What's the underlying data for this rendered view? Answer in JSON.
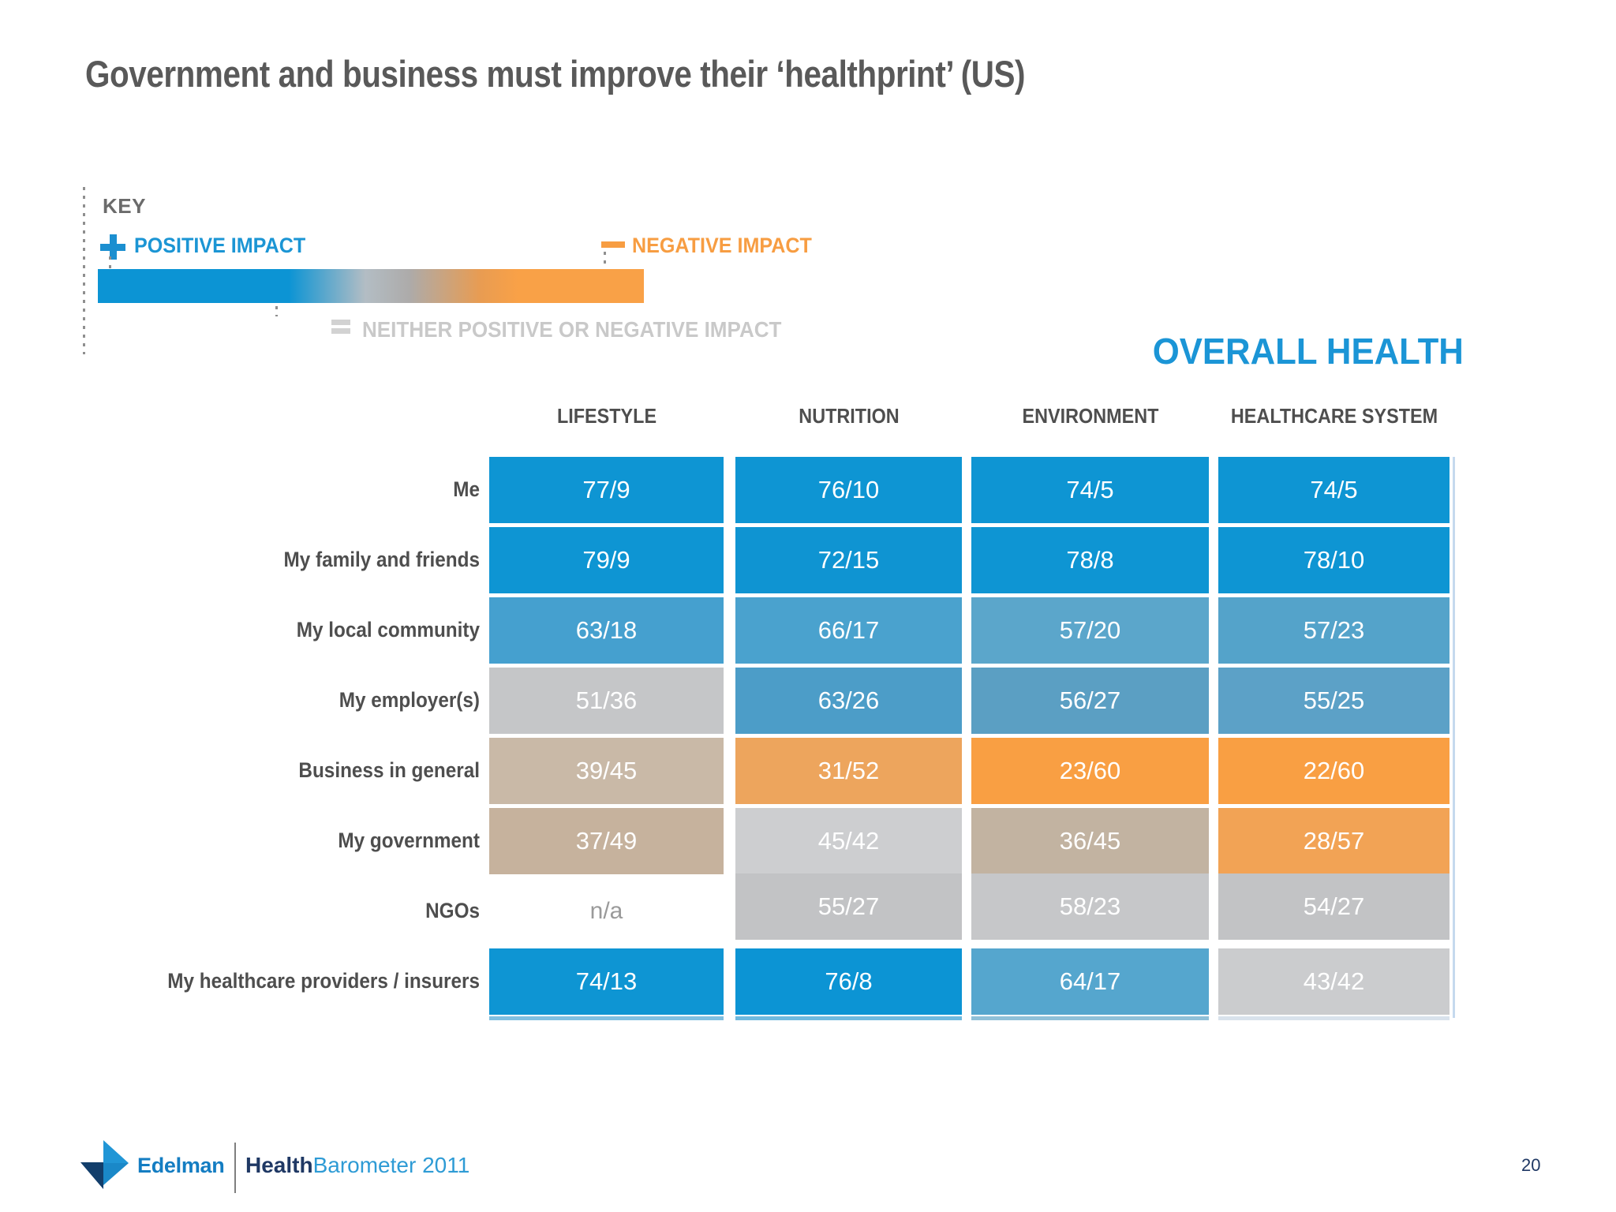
{
  "slide": {
    "title": "Government and business must improve their ‘healthprint’ (US)",
    "page_number": "20"
  },
  "key": {
    "label": "KEY",
    "positive_label": "POSITIVE IMPACT",
    "negative_label": "NEGATIVE IMPACT",
    "neither_label": "NEITHER POSITIVE OR NEGATIVE IMPACT",
    "colors": {
      "positive": "#0C94D4",
      "negative": "#F9A147",
      "neither": "#ADABAA"
    }
  },
  "overall_health_label": "OVERALL HEALTH",
  "chart_data": {
    "type": "heatmap",
    "title": "Government and business must improve their ‘healthprint’ (US)",
    "measure": "OVERALL HEALTH",
    "value_format": "positive/negative (% saying positive impact / % saying negative impact)",
    "legend": {
      "positive": "POSITIVE IMPACT",
      "negative": "NEGATIVE IMPACT",
      "neither": "NEITHER POSITIVE OR NEGATIVE IMPACT",
      "scale": "blue = positive, gray = neutral, orange = negative"
    },
    "columns": [
      "LIFESTYLE",
      "NUTRITION",
      "ENVIRONMENT",
      "HEALTHCARE SYSTEM"
    ],
    "rows": [
      "Me",
      "My family and friends",
      "My local community",
      "My employer(s)",
      "Business in general",
      "My government",
      "NGOs",
      "My healthcare providers / insurers"
    ],
    "cells": [
      [
        {
          "label": "77/9",
          "pos": 77,
          "neg": 9,
          "color": "#0E95D3"
        },
        {
          "label": "76/10",
          "pos": 76,
          "neg": 10,
          "color": "#0E95D3"
        },
        {
          "label": "74/5",
          "pos": 74,
          "neg": 5,
          "color": "#0E95D3"
        },
        {
          "label": "74/5",
          "pos": 74,
          "neg": 5,
          "color": "#0E95D3"
        }
      ],
      [
        {
          "label": "79/9",
          "pos": 79,
          "neg": 9,
          "color": "#0E95D3"
        },
        {
          "label": "72/15",
          "pos": 72,
          "neg": 15,
          "color": "#0F94D2"
        },
        {
          "label": "78/8",
          "pos": 78,
          "neg": 8,
          "color": "#0E95D3"
        },
        {
          "label": "78/10",
          "pos": 78,
          "neg": 10,
          "color": "#0E95D3"
        }
      ],
      [
        {
          "label": "63/18",
          "pos": 63,
          "neg": 18,
          "color": "#45A0CF"
        },
        {
          "label": "66/17",
          "pos": 66,
          "neg": 17,
          "color": "#4AA2CE"
        },
        {
          "label": "57/20",
          "pos": 57,
          "neg": 20,
          "color": "#5BA6CB"
        },
        {
          "label": "57/23",
          "pos": 57,
          "neg": 23,
          "color": "#54A3CA"
        }
      ],
      [
        {
          "label": "51/36",
          "pos": 51,
          "neg": 36,
          "color": "#C5C6C8"
        },
        {
          "label": "63/26",
          "pos": 63,
          "neg": 26,
          "color": "#4C9DC8"
        },
        {
          "label": "56/27",
          "pos": 56,
          "neg": 27,
          "color": "#5B9FC3"
        },
        {
          "label": "55/25",
          "pos": 55,
          "neg": 25,
          "color": "#5CA1C7"
        }
      ],
      [
        {
          "label": "39/45",
          "pos": 39,
          "neg": 45,
          "color": "#C9B9A7"
        },
        {
          "label": "31/52",
          "pos": 31,
          "neg": 52,
          "color": "#EDA55D"
        },
        {
          "label": "23/60",
          "pos": 23,
          "neg": 60,
          "color": "#F99F43"
        },
        {
          "label": "22/60",
          "pos": 22,
          "neg": 60,
          "color": "#F99F43"
        }
      ],
      [
        {
          "label": "37/49",
          "pos": 37,
          "neg": 49,
          "color": "#C6B29D"
        },
        {
          "label": "45/42",
          "pos": 45,
          "neg": 42,
          "color": "#CDCED0"
        },
        {
          "label": "36/45",
          "pos": 36,
          "neg": 45,
          "color": "#C2B3A1"
        },
        {
          "label": "28/57",
          "pos": 28,
          "neg": 57,
          "color": "#F2A355"
        }
      ],
      [
        {
          "label": "n/a",
          "pos": null,
          "neg": null,
          "color": null
        },
        {
          "label": "55/27",
          "pos": 55,
          "neg": 27,
          "color": "#C2C3C5"
        },
        {
          "label": "58/23",
          "pos": 58,
          "neg": 23,
          "color": "#C6C7C9"
        },
        {
          "label": "54/27",
          "pos": 54,
          "neg": 27,
          "color": "#C2C3C5"
        }
      ],
      [
        {
          "label": "74/13",
          "pos": 74,
          "neg": 13,
          "color": "#0E95D3"
        },
        {
          "label": "76/8",
          "pos": 76,
          "neg": 8,
          "color": "#0C94D4"
        },
        {
          "label": "64/17",
          "pos": 64,
          "neg": 17,
          "color": "#55A6CE"
        },
        {
          "label": "43/42",
          "pos": 43,
          "neg": 42,
          "color": "#CBCCCE"
        }
      ]
    ],
    "underline_colors": [
      "#7FBFE0",
      "#6FB9DE",
      "#8FC0D8",
      "#D9E2EC"
    ]
  },
  "footer": {
    "brand": "Edelman",
    "report_dark": "Health",
    "report_light": "Barometer 2011"
  }
}
